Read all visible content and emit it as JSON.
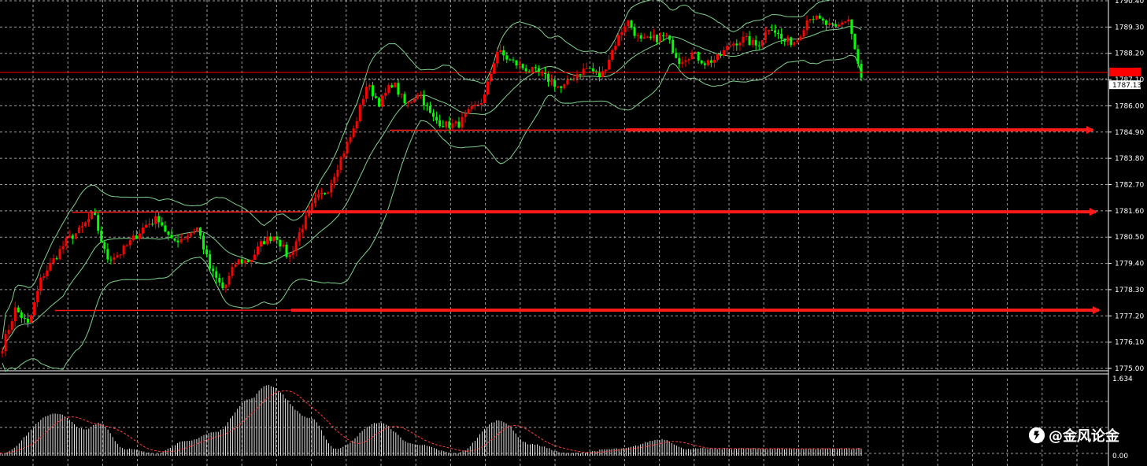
{
  "chart_data": [
    {
      "type": "candlestick",
      "title": "",
      "ylim": [
        1775.0,
        1790.4
      ],
      "top_tick_label": "1790.40",
      "y_ticks": [
        "1789.30",
        "1788.20",
        "1787.10",
        "1786.00",
        "1784.90",
        "1783.80",
        "1782.70",
        "1781.60",
        "1780.50",
        "1779.40",
        "1778.30",
        "1777.20",
        "1776.10",
        "1775.00"
      ],
      "current_price_label": "1787.13",
      "current_price": 1787.13,
      "bid_line_price": 1787.4,
      "grid": true,
      "colors": {
        "up": "#ff0000",
        "down": "#00ff00",
        "band": "#7fd18f",
        "grid": "#a0a0a0",
        "line": "#ff0000",
        "arrow": "#ff1a1a"
      },
      "path": [
        1775.9,
        1777.5,
        1776.8,
        1778.8,
        1779.6,
        1780.4,
        1780.8,
        1781.5,
        1779.6,
        1779.8,
        1780.4,
        1781.0,
        1781.3,
        1780.3,
        1780.5,
        1780.9,
        1779.1,
        1778.3,
        1779.5,
        1779.5,
        1780.3,
        1780.6,
        1779.6,
        1780.9,
        1782.0,
        1782.5,
        1783.8,
        1785.0,
        1786.9,
        1786.1,
        1787.0,
        1786.0,
        1786.6,
        1785.5,
        1785.2,
        1785.2,
        1785.8,
        1786.3,
        1788.3,
        1787.9,
        1787.6,
        1787.4,
        1787.1,
        1786.7,
        1787.3,
        1787.6,
        1787.2,
        1788.5,
        1789.6,
        1788.7,
        1788.8,
        1788.9,
        1787.9,
        1788.2,
        1787.8,
        1788.0,
        1788.6,
        1788.8,
        1788.5,
        1789.4,
        1788.7,
        1788.7,
        1789.8,
        1789.5,
        1789.2,
        1789.7,
        1787.1
      ],
      "support_resistance_levels": [
        1784.99,
        1781.56,
        1777.44
      ]
    },
    {
      "type": "bar",
      "title": "",
      "ylim": [
        0.0,
        1.634
      ],
      "y_ticks": [
        "1.634",
        "0.00"
      ],
      "colors": {
        "bars": "#e6e6e6",
        "signal": "#ff3b3b"
      },
      "peaks": [
        {
          "x": 0.0,
          "y": 0.05
        },
        {
          "x": 0.065,
          "y": 0.9
        },
        {
          "x": 0.1,
          "y": 0.55
        },
        {
          "x": 0.115,
          "y": 0.7
        },
        {
          "x": 0.145,
          "y": 0.15
        },
        {
          "x": 0.18,
          "y": 0.05
        },
        {
          "x": 0.215,
          "y": 0.3
        },
        {
          "x": 0.25,
          "y": 0.5
        },
        {
          "x": 0.29,
          "y": 1.2
        },
        {
          "x": 0.31,
          "y": 1.5
        },
        {
          "x": 0.36,
          "y": 0.8
        },
        {
          "x": 0.39,
          "y": 0.15
        },
        {
          "x": 0.44,
          "y": 0.7
        },
        {
          "x": 0.48,
          "y": 0.25
        },
        {
          "x": 0.53,
          "y": 0.05
        },
        {
          "x": 0.58,
          "y": 0.75
        },
        {
          "x": 0.615,
          "y": 0.25
        },
        {
          "x": 0.66,
          "y": 0.05
        },
        {
          "x": 0.72,
          "y": 0.15
        },
        {
          "x": 0.77,
          "y": 0.35
        },
        {
          "x": 0.795,
          "y": 0.15
        }
      ]
    }
  ],
  "watermark": {
    "text": "@金风论金",
    "logo_icon": "weibo-logo-icon"
  }
}
